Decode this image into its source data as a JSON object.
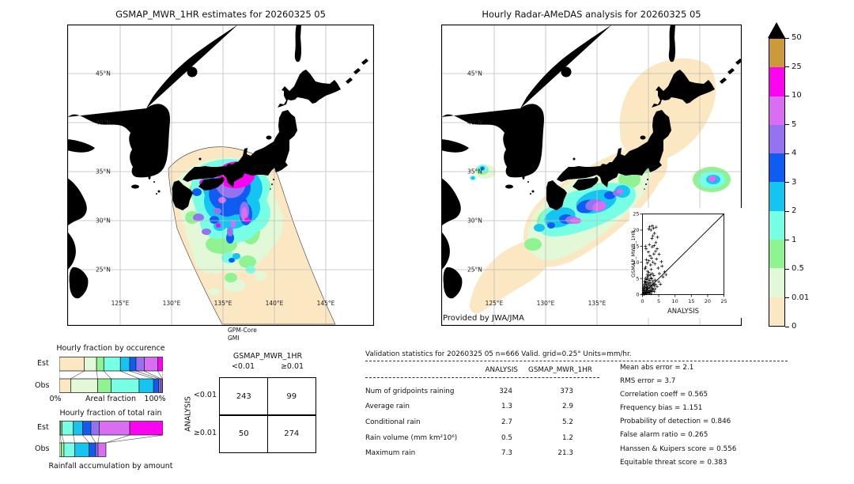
{
  "palette": {
    "peach": "#FBE7C1",
    "palegreen": "#E3F8D6",
    "green": "#8FF391",
    "aqua": "#76FFE5",
    "cyan": "#14C5F1",
    "blue": "#0F5CF2",
    "purple": "#9472F0",
    "orchid": "#D96EF3",
    "magenta": "#FB04F1",
    "tan": "#CD9A3B",
    "over": "#000000"
  },
  "colorbar": {
    "unit": "mm/hr",
    "levels": [
      "0",
      "0.01",
      "0.5",
      "1",
      "2",
      "3",
      "4",
      "5",
      "10",
      "25",
      "50"
    ],
    "labels_top_to_bottom": [
      "50",
      "25",
      "10",
      "5",
      "4",
      "3",
      "2",
      "1",
      "0.5",
      "0.01",
      "0"
    ],
    "segment_colors_bottom_to_top": [
      "#FBE7C1",
      "#E3F8D6",
      "#8FF391",
      "#76FFE5",
      "#14C5F1",
      "#0F5CF2",
      "#9472F0",
      "#D96EF3",
      "#FB04F1",
      "#CD9A3B"
    ],
    "over_color": "#000000"
  },
  "chart_data": [
    {
      "type": "map",
      "title": "GSMAP_MWR_1HR estimates for 20260325 05",
      "lat_ticks": [
        "45°N",
        "40°N",
        "35°N",
        "30°N",
        "25°N"
      ],
      "lon_ticks": [
        "125°E",
        "130°E",
        "135°E",
        "140°E",
        "145°E"
      ],
      "source_line1": "GPM-Core",
      "source_line2": "GMI",
      "description": "Satellite microwave rainfall estimate swath over Japan (mm/hr)"
    },
    {
      "type": "map",
      "title": "Hourly Radar-AMeDAS analysis for 20260325 05",
      "lat_ticks": [
        "45°N",
        "40°N",
        "35°N",
        "30°N",
        "25°N"
      ],
      "lon_ticks": [
        "125°E",
        "130°E",
        "135°E",
        "140°E",
        "145°E"
      ],
      "credit": "Provided by JWA/JMA",
      "description": "Radar-AMeDAS analyzed hourly rainfall over Japan (mm/hr)"
    },
    {
      "type": "bar",
      "subtype": "stacked-horizontal-fraction",
      "title": "Hourly fraction by occurence",
      "rows": [
        "Est",
        "Obs"
      ],
      "xlabel": "Areal fraction",
      "x_min_label": "0%",
      "x_max_label": "100%",
      "bins_mm_hr": [
        "0-0.01",
        "0.01-0.5",
        "0.5-1",
        "1-2",
        "2-3",
        "3-4",
        "4-5",
        "5-10",
        "10-25"
      ],
      "est_percent": [
        24,
        12,
        7,
        16,
        9,
        6,
        8,
        13,
        5
      ],
      "obs_percent": [
        11,
        26,
        13,
        27,
        14,
        5,
        2,
        1.5,
        0.5
      ]
    },
    {
      "type": "bar",
      "subtype": "stacked-horizontal-fraction",
      "title": "Hourly fraction of total rain",
      "caption": "Rainfall accumulation by amount",
      "rows": [
        "Est",
        "Obs"
      ],
      "bins_mm_hr": [
        "0-0.01",
        "0.01-0.5",
        "0.5-1",
        "1-2",
        "2-3",
        "3-4",
        "4-5",
        "5-10",
        "10-25"
      ],
      "est_percent": [
        0,
        1,
        1.5,
        11,
        9,
        8,
        8,
        29.5,
        32
      ],
      "obs_percent": [
        0,
        4,
        6,
        23,
        31,
        14,
        5,
        17,
        0
      ],
      "obs_bar_relative_length": 0.45
    },
    {
      "type": "table",
      "subtype": "contingency",
      "col_group": "GSMAP_MWR_1HR",
      "row_group": "ANALYSIS",
      "col_labels": [
        "<0.01",
        "≥0.01"
      ],
      "row_labels": [
        "<0.01",
        "≥0.01"
      ],
      "values": [
        [
          "243",
          "99"
        ],
        [
          "50",
          "274"
        ]
      ]
    },
    {
      "type": "table",
      "subtype": "validation-stats",
      "title": "Validation statistics for 20260325 05  n=666 Valid. grid=0.25° Units=mm/hr.",
      "col_headers": [
        "ANALYSIS",
        "GSMAP_MWR_1HR"
      ],
      "rows": [
        {
          "label": "Num of gridpoints raining",
          "analysis": "324",
          "gsmap": "373"
        },
        {
          "label": "Average rain",
          "analysis": "1.3",
          "gsmap": "2.9"
        },
        {
          "label": "Conditional rain",
          "analysis": "2.7",
          "gsmap": "5.2"
        },
        {
          "label": "Rain volume (mm km²10⁶)",
          "analysis": "0.5",
          "gsmap": "1.2"
        },
        {
          "label": "Maximum rain",
          "analysis": "7.3",
          "gsmap": "21.3"
        }
      ],
      "metrics": [
        {
          "label": "Mean abs error",
          "value": "2.1"
        },
        {
          "label": "RMS error",
          "value": "3.7"
        },
        {
          "label": "Correlation coeff",
          "value": "0.565"
        },
        {
          "label": "Frequency bias",
          "value": "1.151"
        },
        {
          "label": "Probability of detection",
          "value": "0.846"
        },
        {
          "label": "False alarm ratio",
          "value": "0.265"
        },
        {
          "label": "Hanssen & Kuipers score",
          "value": "0.556"
        },
        {
          "label": "Equitable threat score",
          "value": "0.383"
        }
      ]
    },
    {
      "type": "scatter",
      "xlabel": "ANALYSIS",
      "ylabel": "GSMAP_MWR_1HR",
      "xlim": [
        0,
        25
      ],
      "ylim": [
        0,
        25
      ],
      "ticks": [
        0,
        5,
        10,
        15,
        20,
        25
      ],
      "identity_line": true,
      "points": [
        [
          0.2,
          0.3
        ],
        [
          0.3,
          1.2
        ],
        [
          0.3,
          0.6
        ],
        [
          0.3,
          2.0
        ],
        [
          0.4,
          2.5
        ],
        [
          0.4,
          0.2
        ],
        [
          0.5,
          0.8
        ],
        [
          0.5,
          3.1
        ],
        [
          0.5,
          1.5
        ],
        [
          0.6,
          1.8
        ],
        [
          0.6,
          0.2
        ],
        [
          0.6,
          0.5
        ],
        [
          0.7,
          4.2
        ],
        [
          0.7,
          0.4
        ],
        [
          0.8,
          2.2
        ],
        [
          0.8,
          8.0
        ],
        [
          0.8,
          3.8
        ],
        [
          0.9,
          5.0
        ],
        [
          0.9,
          1.1
        ],
        [
          0.9,
          15.0
        ],
        [
          1.0,
          3.6
        ],
        [
          1.0,
          0.6
        ],
        [
          1.0,
          8.5
        ],
        [
          1.1,
          2.8
        ],
        [
          1.1,
          0.3
        ],
        [
          1.1,
          14.2
        ],
        [
          1.2,
          4.6
        ],
        [
          1.2,
          1.5
        ],
        [
          1.2,
          10.8
        ],
        [
          1.3,
          3.2
        ],
        [
          1.3,
          0.4
        ],
        [
          1.3,
          2.0
        ],
        [
          1.4,
          5.5
        ],
        [
          1.4,
          0.9
        ],
        [
          1.5,
          2.1
        ],
        [
          1.5,
          6.2
        ],
        [
          1.5,
          9.8
        ],
        [
          1.6,
          3.9
        ],
        [
          1.6,
          0.5
        ],
        [
          1.6,
          7.2
        ],
        [
          1.7,
          1.3
        ],
        [
          1.7,
          4.8
        ],
        [
          1.8,
          2.6
        ],
        [
          1.8,
          13.2
        ],
        [
          1.9,
          5.8
        ],
        [
          1.9,
          0.7
        ],
        [
          1.9,
          20.3
        ],
        [
          2.0,
          3.4
        ],
        [
          2.0,
          6.8
        ],
        [
          2.0,
          10.5
        ],
        [
          2.1,
          1.9
        ],
        [
          2.1,
          15.5
        ],
        [
          2.1,
          0.4
        ],
        [
          2.2,
          4.4
        ],
        [
          2.2,
          21.0
        ],
        [
          2.2,
          0.9
        ],
        [
          2.3,
          2.9
        ],
        [
          2.3,
          12.0
        ],
        [
          2.4,
          6.1
        ],
        [
          2.4,
          1.2
        ],
        [
          2.5,
          3.7
        ],
        [
          2.5,
          9.2
        ],
        [
          2.6,
          5.2
        ],
        [
          2.6,
          0.8
        ],
        [
          2.6,
          20.0
        ],
        [
          2.6,
          0.3
        ],
        [
          2.7,
          2.3
        ],
        [
          2.7,
          7.8
        ],
        [
          2.8,
          4.9
        ],
        [
          2.8,
          1.6
        ],
        [
          2.8,
          11.3
        ],
        [
          2.9,
          3.0
        ],
        [
          2.9,
          17.4
        ],
        [
          3.0,
          6.5
        ],
        [
          3.0,
          1.0
        ],
        [
          3.0,
          14.8
        ],
        [
          3.0,
          21.3
        ],
        [
          3.1,
          2.0
        ],
        [
          3.2,
          4.1
        ],
        [
          3.2,
          10.1
        ],
        [
          3.2,
          18.2
        ],
        [
          3.3,
          1.4
        ],
        [
          3.4,
          3.3
        ],
        [
          3.4,
          20.6
        ],
        [
          3.5,
          5.9
        ],
        [
          3.5,
          12.6
        ],
        [
          3.6,
          2.7
        ],
        [
          3.6,
          15.2
        ],
        [
          3.7,
          0.9
        ],
        [
          3.7,
          19.0
        ],
        [
          3.8,
          4.5
        ],
        [
          3.8,
          9.5
        ],
        [
          3.9,
          1.8
        ],
        [
          4.0,
          3.1
        ],
        [
          4.0,
          13.4
        ],
        [
          4.1,
          16.1
        ],
        [
          4.2,
          20.9
        ],
        [
          4.3,
          11.0
        ],
        [
          4.5,
          2.5
        ],
        [
          4.5,
          14.2
        ],
        [
          4.6,
          17.8
        ],
        [
          4.8,
          8.2
        ],
        [
          5.0,
          4.0
        ],
        [
          5.1,
          12.5
        ],
        [
          5.2,
          6.5
        ],
        [
          5.5,
          3.2
        ],
        [
          5.8,
          10.2
        ],
        [
          6.0,
          8.8
        ],
        [
          6.3,
          5.5
        ],
        [
          6.8,
          7.0
        ],
        [
          7.2,
          6.2
        ]
      ]
    }
  ]
}
